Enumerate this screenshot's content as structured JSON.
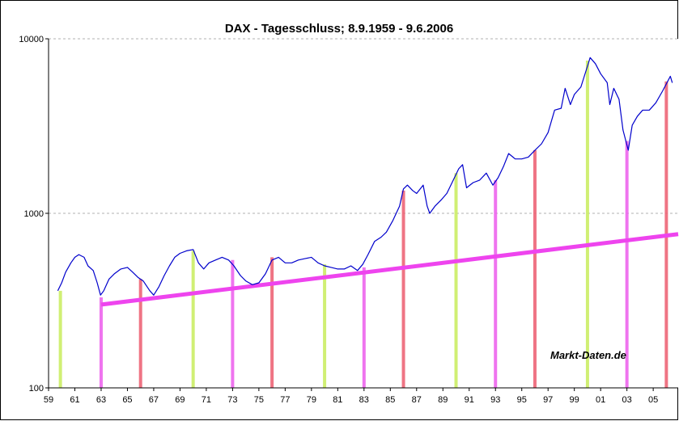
{
  "chart_data": {
    "type": "line",
    "title": "DAX - Tagesschluss; 8.9.1959 - 9.6.2006",
    "watermark": "Markt-Daten.de",
    "y_scale": "log",
    "ylim": [
      100,
      10000
    ],
    "y_ticks": [
      "100",
      "1000",
      "10000"
    ],
    "y_tick_values": [
      100,
      1000,
      10000
    ],
    "xlim": [
      1959.0,
      2006.9
    ],
    "x_ticks": [
      "59",
      "61",
      "63",
      "65",
      "67",
      "69",
      "71",
      "73",
      "75",
      "77",
      "79",
      "81",
      "83",
      "85",
      "87",
      "89",
      "91",
      "93",
      "95",
      "97",
      "99",
      "01",
      "03",
      "05"
    ],
    "x_tick_values": [
      1959,
      1961,
      1963,
      1965,
      1967,
      1969,
      1971,
      1973,
      1975,
      1977,
      1979,
      1981,
      1983,
      1985,
      1987,
      1989,
      1991,
      1993,
      1995,
      1997,
      1999,
      2001,
      2003,
      2005
    ],
    "grid": "horizontal dashed",
    "series": [
      {
        "color": "#0000cc",
        "points": [
          [
            1959.7,
            360
          ],
          [
            1960.0,
            400
          ],
          [
            1960.3,
            460
          ],
          [
            1960.7,
            520
          ],
          [
            1961.0,
            560
          ],
          [
            1961.3,
            580
          ],
          [
            1961.7,
            560
          ],
          [
            1962.0,
            500
          ],
          [
            1962.4,
            470
          ],
          [
            1962.7,
            400
          ],
          [
            1962.95,
            340
          ],
          [
            1963.2,
            360
          ],
          [
            1963.6,
            420
          ],
          [
            1964.0,
            450
          ],
          [
            1964.5,
            480
          ],
          [
            1965.0,
            490
          ],
          [
            1965.4,
            460
          ],
          [
            1965.8,
            430
          ],
          [
            1966.2,
            410
          ],
          [
            1966.7,
            360
          ],
          [
            1967.0,
            340
          ],
          [
            1967.4,
            380
          ],
          [
            1967.8,
            440
          ],
          [
            1968.2,
            500
          ],
          [
            1968.6,
            560
          ],
          [
            1969.0,
            590
          ],
          [
            1969.5,
            610
          ],
          [
            1970.0,
            620
          ],
          [
            1970.4,
            520
          ],
          [
            1970.8,
            480
          ],
          [
            1971.2,
            520
          ],
          [
            1971.7,
            540
          ],
          [
            1972.2,
            560
          ],
          [
            1972.7,
            540
          ],
          [
            1973.1,
            500
          ],
          [
            1973.6,
            440
          ],
          [
            1974.0,
            410
          ],
          [
            1974.5,
            390
          ],
          [
            1975.0,
            400
          ],
          [
            1975.5,
            450
          ],
          [
            1976.0,
            540
          ],
          [
            1976.5,
            560
          ],
          [
            1977.0,
            520
          ],
          [
            1977.5,
            520
          ],
          [
            1978.0,
            540
          ],
          [
            1978.5,
            550
          ],
          [
            1979.0,
            560
          ],
          [
            1979.5,
            520
          ],
          [
            1980.0,
            500
          ],
          [
            1980.5,
            490
          ],
          [
            1981.0,
            480
          ],
          [
            1981.5,
            480
          ],
          [
            1982.0,
            500
          ],
          [
            1982.5,
            470
          ],
          [
            1982.9,
            510
          ],
          [
            1983.3,
            580
          ],
          [
            1983.8,
            690
          ],
          [
            1984.3,
            730
          ],
          [
            1984.7,
            780
          ],
          [
            1985.2,
            910
          ],
          [
            1985.7,
            1100
          ],
          [
            1986.0,
            1380
          ],
          [
            1986.3,
            1450
          ],
          [
            1986.7,
            1350
          ],
          [
            1987.0,
            1300
          ],
          [
            1987.5,
            1450
          ],
          [
            1987.8,
            1100
          ],
          [
            1988.0,
            1000
          ],
          [
            1988.4,
            1100
          ],
          [
            1988.9,
            1200
          ],
          [
            1989.3,
            1300
          ],
          [
            1989.7,
            1500
          ],
          [
            1990.2,
            1800
          ],
          [
            1990.5,
            1900
          ],
          [
            1990.8,
            1400
          ],
          [
            1991.3,
            1500
          ],
          [
            1991.8,
            1550
          ],
          [
            1992.3,
            1700
          ],
          [
            1992.8,
            1450
          ],
          [
            1993.2,
            1600
          ],
          [
            1993.6,
            1850
          ],
          [
            1994.0,
            2200
          ],
          [
            1994.5,
            2050
          ],
          [
            1995.0,
            2050
          ],
          [
            1995.5,
            2100
          ],
          [
            1996.0,
            2300
          ],
          [
            1996.5,
            2500
          ],
          [
            1997.0,
            2900
          ],
          [
            1997.5,
            3900
          ],
          [
            1998.0,
            4000
          ],
          [
            1998.3,
            5200
          ],
          [
            1998.7,
            4200
          ],
          [
            1999.0,
            4800
          ],
          [
            1999.5,
            5300
          ],
          [
            1999.9,
            6600
          ],
          [
            2000.2,
            7800
          ],
          [
            2000.6,
            7200
          ],
          [
            2001.0,
            6300
          ],
          [
            2001.5,
            5600
          ],
          [
            2001.7,
            4200
          ],
          [
            2002.0,
            5200
          ],
          [
            2002.4,
            4500
          ],
          [
            2002.7,
            3000
          ],
          [
            2003.1,
            2300
          ],
          [
            2003.4,
            3200
          ],
          [
            2003.8,
            3600
          ],
          [
            2004.2,
            3900
          ],
          [
            2004.7,
            3900
          ],
          [
            2005.2,
            4300
          ],
          [
            2005.7,
            5000
          ],
          [
            2006.1,
            5700
          ],
          [
            2006.3,
            6100
          ],
          [
            2006.45,
            5600
          ]
        ]
      }
    ],
    "trend_line": {
      "color": "#ee44ee",
      "from": [
        1963.0,
        300
      ],
      "to": [
        2006.9,
        760
      ]
    },
    "vertical_markers": [
      {
        "x": 1959.9,
        "color": "#ccee66",
        "top": 360
      },
      {
        "x": 1963.0,
        "color": "#ee66ee",
        "top": 330
      },
      {
        "x": 1966.0,
        "color": "#ee6677",
        "top": 420
      },
      {
        "x": 1970.0,
        "color": "#ccee66",
        "top": 610
      },
      {
        "x": 1973.0,
        "color": "#ee66ee",
        "top": 540
      },
      {
        "x": 1976.0,
        "color": "#ee6677",
        "top": 560
      },
      {
        "x": 1980.0,
        "color": "#ccee66",
        "top": 510
      },
      {
        "x": 1983.0,
        "color": "#ee66ee",
        "top": 490
      },
      {
        "x": 1986.0,
        "color": "#ee6677",
        "top": 1350
      },
      {
        "x": 1990.0,
        "color": "#ccee66",
        "top": 1700
      },
      {
        "x": 1993.0,
        "color": "#ee66ee",
        "top": 1550
      },
      {
        "x": 1996.0,
        "color": "#ee6677",
        "top": 2300
      },
      {
        "x": 2000.0,
        "color": "#ccee66",
        "top": 7500
      },
      {
        "x": 2003.0,
        "color": "#ee66ee",
        "top": 2600
      },
      {
        "x": 2006.0,
        "color": "#ee6677",
        "top": 5700
      }
    ]
  }
}
